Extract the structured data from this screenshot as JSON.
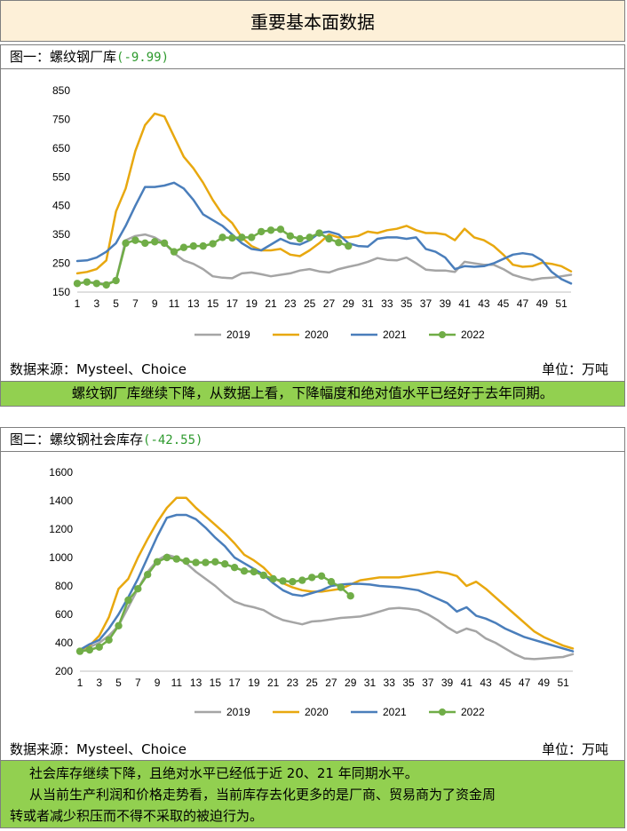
{
  "page_title": "重要基本面数据",
  "panel1": {
    "title": "图一：螺纹钢厂库",
    "delta": "(-9.99)",
    "source": "数据来源：Mysteel、Choice",
    "unit": "单位：万吨",
    "comment": "螺纹钢厂库继续下降，从数据上看，下降幅度和绝对值水平已经好于去年同期。"
  },
  "panel2": {
    "title": "图二：螺纹钢社会库存",
    "delta": "(-42.55)",
    "source": "数据来源：Mysteel、Choice",
    "unit": "单位：万吨",
    "comment_lines": [
      "社会库存继续下降，且绝对水平已经低于近 20、21 年同期水平。",
      "从当前生产利润和价格走势看，当前库存去化更多的是厂商、贸易商为了资金周",
      "转或者减少积压而不得不采取的被迫行为。"
    ]
  },
  "chart_data": [
    {
      "type": "line",
      "title": "螺纹钢厂库",
      "x_ticks": [
        1,
        3,
        5,
        7,
        9,
        11,
        13,
        15,
        17,
        19,
        21,
        23,
        25,
        27,
        29,
        31,
        33,
        35,
        37,
        39,
        41,
        43,
        45,
        47,
        49,
        51
      ],
      "x_range": [
        1,
        52
      ],
      "ylim": [
        150,
        850
      ],
      "y_ticks": [
        150,
        250,
        350,
        450,
        550,
        650,
        750,
        850
      ],
      "series": [
        {
          "name": "2019",
          "color": "#a5a5a5",
          "markers": false,
          "values": [
            180,
            185,
            182,
            178,
            190,
            330,
            345,
            350,
            340,
            320,
            285,
            260,
            248,
            230,
            205,
            200,
            198,
            215,
            218,
            212,
            205,
            210,
            215,
            225,
            230,
            222,
            218,
            230,
            238,
            245,
            255,
            268,
            262,
            260,
            270,
            250,
            228,
            225,
            225,
            220,
            255,
            250,
            245,
            245,
            230,
            210,
            200,
            192,
            198,
            200,
            205,
            210
          ]
        },
        {
          "name": "2020",
          "color": "#e8a80f",
          "markers": false,
          "values": [
            215,
            220,
            230,
            260,
            430,
            510,
            640,
            730,
            770,
            760,
            690,
            620,
            580,
            530,
            470,
            420,
            390,
            340,
            310,
            295,
            295,
            300,
            280,
            275,
            295,
            320,
            350,
            340,
            340,
            345,
            360,
            355,
            365,
            370,
            380,
            365,
            355,
            355,
            350,
            330,
            370,
            340,
            330,
            310,
            280,
            245,
            238,
            240,
            252,
            248,
            240,
            222
          ]
        },
        {
          "name": "2021",
          "color": "#4a7ebb",
          "markers": false,
          "values": [
            258,
            260,
            270,
            290,
            320,
            380,
            450,
            515,
            515,
            520,
            530,
            510,
            470,
            420,
            400,
            380,
            350,
            320,
            300,
            295,
            315,
            335,
            320,
            315,
            330,
            355,
            360,
            350,
            320,
            310,
            308,
            335,
            340,
            340,
            335,
            340,
            300,
            290,
            270,
            230,
            240,
            238,
            240,
            250,
            265,
            280,
            285,
            280,
            260,
            220,
            195,
            180
          ]
        },
        {
          "name": "2022",
          "color": "#70ad47",
          "markers": true,
          "values": [
            180,
            185,
            180,
            175,
            190,
            320,
            330,
            320,
            325,
            320,
            290,
            305,
            310,
            310,
            318,
            340,
            338,
            340,
            340,
            360,
            365,
            368,
            345,
            335,
            340,
            355,
            335,
            322,
            310
          ]
        }
      ],
      "legend_position": "bottom",
      "x_labels": [
        "1",
        "3",
        "5",
        "7",
        "9",
        "11",
        "13",
        "15",
        "17",
        "19",
        "21",
        "23",
        "25",
        "27",
        "29",
        "31",
        "33",
        "35",
        "37",
        "39",
        "41",
        "43",
        "45",
        "47",
        "49",
        "51"
      ],
      "y_labels": [
        "150",
        "250",
        "350",
        "450",
        "550",
        "650",
        "750",
        "850"
      ]
    },
    {
      "type": "line",
      "title": "螺纹钢社会库存",
      "x_ticks": [
        1,
        3,
        5,
        7,
        9,
        11,
        13,
        15,
        17,
        19,
        21,
        23,
        25,
        27,
        29,
        31,
        33,
        35,
        37,
        39,
        41,
        43,
        45,
        47,
        49,
        51
      ],
      "x_range": [
        1,
        52
      ],
      "ylim": [
        200,
        1600
      ],
      "y_ticks": [
        200,
        400,
        600,
        800,
        1000,
        1200,
        1400,
        1600
      ],
      "series": [
        {
          "name": "2019",
          "color": "#a5a5a5",
          "markers": false,
          "values": [
            340,
            370,
            400,
            450,
            520,
            650,
            780,
            900,
            980,
            1020,
            1000,
            960,
            900,
            850,
            800,
            740,
            690,
            665,
            650,
            630,
            590,
            560,
            545,
            530,
            550,
            555,
            565,
            575,
            580,
            585,
            600,
            620,
            640,
            645,
            640,
            630,
            600,
            560,
            510,
            470,
            500,
            480,
            430,
            400,
            360,
            320,
            290,
            285,
            290,
            295,
            300,
            320
          ]
        },
        {
          "name": "2020",
          "color": "#e8a80f",
          "markers": false,
          "values": [
            350,
            380,
            450,
            580,
            780,
            850,
            1000,
            1130,
            1250,
            1350,
            1420,
            1420,
            1350,
            1290,
            1230,
            1170,
            1100,
            1020,
            980,
            930,
            860,
            820,
            790,
            770,
            760,
            760,
            770,
            780,
            810,
            840,
            850,
            860,
            860,
            860,
            870,
            880,
            890,
            900,
            890,
            870,
            800,
            830,
            780,
            720,
            660,
            600,
            540,
            480,
            440,
            410,
            380,
            360
          ]
        },
        {
          "name": "2021",
          "color": "#4a7ebb",
          "markers": false,
          "values": [
            350,
            390,
            420,
            500,
            600,
            720,
            850,
            1000,
            1150,
            1280,
            1300,
            1300,
            1270,
            1210,
            1140,
            1080,
            1000,
            960,
            920,
            880,
            820,
            770,
            740,
            730,
            750,
            770,
            800,
            810,
            815,
            815,
            810,
            800,
            795,
            790,
            780,
            770,
            740,
            710,
            680,
            620,
            650,
            590,
            570,
            540,
            500,
            470,
            440,
            420,
            400,
            380,
            360,
            340
          ]
        },
        {
          "name": "2022",
          "color": "#70ad47",
          "markers": true,
          "values": [
            340,
            350,
            370,
            420,
            520,
            700,
            780,
            880,
            970,
            1000,
            990,
            975,
            965,
            965,
            970,
            955,
            930,
            905,
            900,
            875,
            850,
            835,
            830,
            840,
            860,
            870,
            830,
            790,
            730
          ]
        }
      ],
      "legend_position": "bottom",
      "x_labels": [
        "1",
        "3",
        "5",
        "7",
        "9",
        "11",
        "13",
        "15",
        "17",
        "19",
        "21",
        "23",
        "25",
        "27",
        "29",
        "31",
        "33",
        "35",
        "37",
        "39",
        "41",
        "43",
        "45",
        "47",
        "49",
        "51"
      ],
      "y_labels": [
        "200",
        "400",
        "600",
        "800",
        "1000",
        "1200",
        "1400",
        "1600"
      ]
    }
  ]
}
